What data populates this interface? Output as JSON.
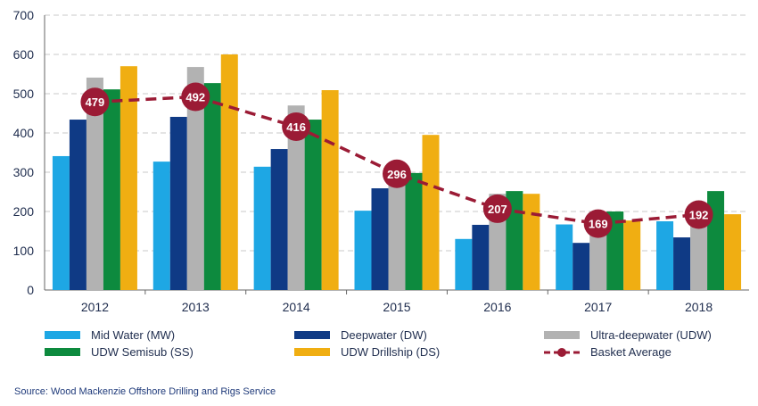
{
  "chart_data": {
    "type": "bar",
    "title": "",
    "xlabel": "",
    "ylabel": "",
    "ylim": [
      0,
      700
    ],
    "yticks": [
      0,
      100,
      200,
      300,
      400,
      500,
      600,
      700
    ],
    "grid": true,
    "categories": [
      "2012",
      "2013",
      "2014",
      "2015",
      "2016",
      "2017",
      "2018"
    ],
    "series": [
      {
        "name": "Mid Water (MW)",
        "color": "#1ea7e4",
        "values": [
          341,
          327,
          314,
          202,
          130,
          167,
          175
        ]
      },
      {
        "name": "Deepwater (DW)",
        "color": "#0f3a85",
        "values": [
          434,
          441,
          359,
          259,
          166,
          120,
          134
        ]
      },
      {
        "name": "Ultra-deepwater (UDW)",
        "color": "#b2b2b2",
        "values": [
          541,
          568,
          470,
          268,
          245,
          170,
          180
        ]
      },
      {
        "name": "UDW Semisub (SS)",
        "color": "#0d8a3e",
        "values": [
          511,
          527,
          434,
          298,
          252,
          200,
          252
        ]
      },
      {
        "name": "UDW Drillship (DS)",
        "color": "#f0ae12",
        "values": [
          570,
          600,
          509,
          395,
          245,
          177,
          193
        ]
      }
    ],
    "line": {
      "name": "Basket Average",
      "color": "#9b1b35",
      "values": [
        479,
        492,
        416,
        296,
        207,
        169,
        192
      ]
    },
    "legend_position": "bottom"
  },
  "source": "Source: Wood Mackenzie Offshore Drilling and Rigs Service"
}
